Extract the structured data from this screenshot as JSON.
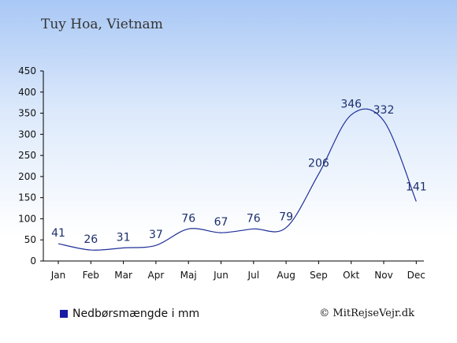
{
  "title": "Tuy Hoa, Vietnam",
  "legend_label": "Nedbørsmængde i mm",
  "credit": "© MitRejseVejr.dk",
  "colors": {
    "line": "#1f2f99",
    "legend_swatch": "#1a1aa6",
    "label": "#1c2e6e"
  },
  "chart_data": {
    "type": "line",
    "categories": [
      "Jan",
      "Feb",
      "Mar",
      "Apr",
      "Maj",
      "Jun",
      "Jul",
      "Aug",
      "Sep",
      "Okt",
      "Nov",
      "Dec"
    ],
    "series": [
      {
        "name": "Nedbørsmængde i mm",
        "values": [
          41,
          26,
          31,
          37,
          76,
          67,
          76,
          79,
          206,
          346,
          332,
          141
        ]
      }
    ],
    "data_labels": [
      "41",
      "26",
      "31",
      "37",
      "76",
      "67",
      "76",
      "79",
      "206",
      "346",
      "332",
      "141"
    ],
    "ylim": [
      0,
      450
    ],
    "yticks": [
      0,
      50,
      100,
      150,
      200,
      250,
      300,
      350,
      400,
      450
    ],
    "xlabel": "",
    "ylabel": "",
    "grid": false,
    "legend_position": "bottom-left"
  }
}
